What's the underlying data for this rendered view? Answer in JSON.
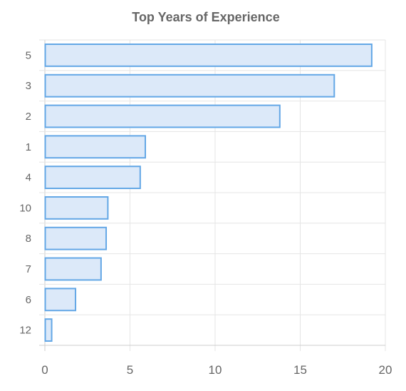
{
  "chart_data": {
    "type": "bar",
    "orientation": "horizontal",
    "title": "Top Years of Experience",
    "categories": [
      "5",
      "3",
      "2",
      "1",
      "4",
      "10",
      "8",
      "7",
      "6",
      "12"
    ],
    "values": [
      19.2,
      17.0,
      13.8,
      5.9,
      5.6,
      3.7,
      3.6,
      3.3,
      1.8,
      0.4
    ],
    "xlim": [
      0,
      20
    ],
    "x_ticks": [
      "0",
      "5",
      "10",
      "15",
      "20"
    ],
    "grid": true,
    "colors": {
      "bar_fill": "#dce9f9",
      "bar_stroke": "#63a7e6",
      "grid": "#e5e5e5",
      "axis": "#cccccc",
      "text": "#666666"
    }
  }
}
